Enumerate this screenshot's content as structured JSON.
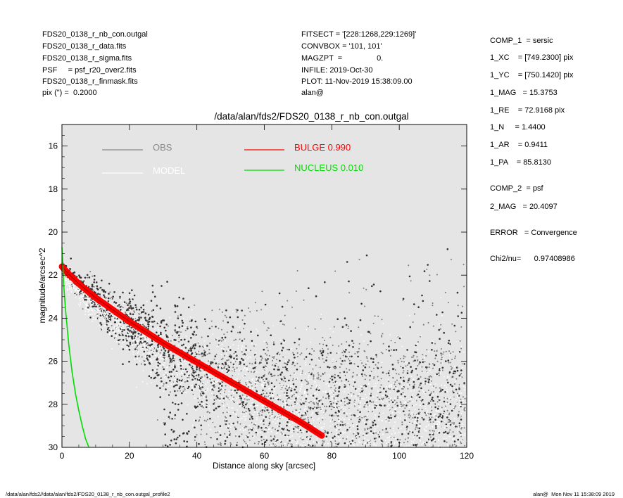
{
  "header": {
    "left": [
      "FDS20_0138_r_nb_con.outgal",
      "FDS20_0138_r_data.fits",
      "FDS20_0138_r_sigma.fits",
      "PSF     = psf_r20_over2.fits",
      "FDS20_0138_r_finmask.fits",
      "pix (\") =  0.2000"
    ],
    "middle": [
      "FITSECT = '[228:1268,229:1269]'",
      "CONVBOX = '101, 101'",
      "MAGZPT  =                0.",
      "INFILE: 2019-Oct-30",
      "PLOT: 11-Nov-2019 15:38:09.00",
      "alan@"
    ]
  },
  "params": [
    "COMP_1  = sersic",
    "1_XC    = [749.2300] pix",
    "1_YC    = [750.1420] pix",
    "1_MAG   = 15.3753",
    "1_RE    = 72.9168 pix",
    "1_N     = 1.4400",
    "1_AR    = 0.9411",
    "1_PA    = 85.8130",
    "COMP_2  = psf",
    "2_MAG   = 20.4097",
    "ERROR   = Convergence",
    "Chi2/nu=      0.97408986"
  ],
  "footer": {
    "left": "/data/alan/fds2//data/alan/fds2/FDS20_0138_r_nb_con.outgal_profile2",
    "right": "alan@  Mon Nov 11 15:38:09 2019"
  },
  "chart_data": {
    "type": "scatter",
    "title": "/data/alan/fds2/FDS20_0138_r_nb_con.outgal",
    "xlabel": "Distance along sky [arcsec]",
    "ylabel": "magnitude/arcsec^2",
    "xlim": [
      0,
      120
    ],
    "ylim": [
      30,
      15
    ],
    "xticks": [
      0,
      20,
      40,
      60,
      80,
      100,
      120
    ],
    "yticks": [
      16,
      18,
      20,
      22,
      24,
      26,
      28,
      30
    ],
    "legend": [
      {
        "label": "OBS",
        "color": "#888888"
      },
      {
        "label": "MODEL",
        "color": "#ffffff"
      },
      {
        "label": "BULGE  0.990",
        "color": "#ff0000"
      },
      {
        "label": "NUCLEUS  0.010",
        "color": "#00dd00"
      }
    ],
    "series": [
      {
        "name": "OBS",
        "color": "#888888",
        "description_points": [
          [
            0,
            21.6
          ],
          [
            5,
            22.4
          ],
          [
            10,
            23.1
          ],
          [
            15,
            23.7
          ],
          [
            20,
            24.3
          ],
          [
            25,
            24.8
          ],
          [
            30,
            25.3
          ],
          [
            40,
            26.2
          ],
          [
            50,
            26.9
          ],
          [
            60,
            27.5
          ],
          [
            70,
            28.0
          ],
          [
            80,
            28.4
          ],
          [
            100,
            28.9
          ],
          [
            120,
            29.3
          ]
        ]
      },
      {
        "name": "MODEL",
        "color": "#ffffff",
        "description_points": [
          [
            0,
            21.6
          ],
          [
            10,
            23.0
          ],
          [
            20,
            24.2
          ],
          [
            30,
            25.2
          ],
          [
            40,
            26.1
          ],
          [
            50,
            26.9
          ],
          [
            60,
            27.7
          ],
          [
            70,
            28.4
          ],
          [
            80,
            29.1
          ],
          [
            90,
            29.8
          ]
        ]
      },
      {
        "name": "BULGE",
        "color": "#ff0000",
        "x": [
          0,
          2,
          5,
          10,
          15,
          20,
          25,
          30,
          35,
          40,
          45,
          50,
          55,
          60,
          65,
          70,
          75,
          77
        ],
        "y": [
          21.6,
          21.95,
          22.4,
          23.05,
          23.6,
          24.15,
          24.65,
          25.15,
          25.6,
          26.05,
          26.5,
          26.95,
          27.4,
          27.85,
          28.3,
          28.75,
          29.25,
          29.45
        ]
      },
      {
        "name": "NUCLEUS",
        "color": "#00dd00",
        "x": [
          0,
          0.5,
          1,
          2,
          3,
          4,
          5,
          6,
          7,
          8
        ],
        "y": [
          20.7,
          22.4,
          23.5,
          25.2,
          26.5,
          27.5,
          28.3,
          29.0,
          29.6,
          30.1
        ]
      }
    ]
  }
}
